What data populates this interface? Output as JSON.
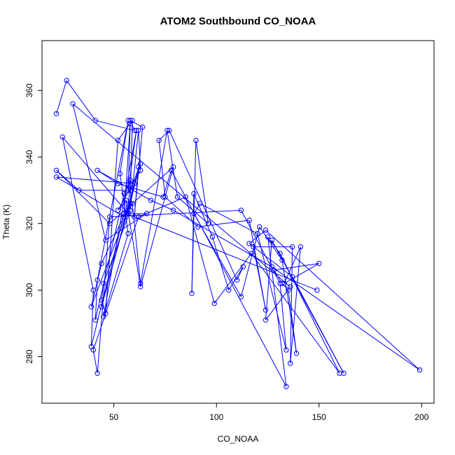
{
  "chart_data": {
    "type": "line",
    "title": "ATOM2 Southbound CO_NOAA",
    "xlabel": "CO_NOAA",
    "ylabel": "Theta (K)",
    "xlim": [
      15,
      206
    ],
    "ylim": [
      266,
      375
    ],
    "xticks": [
      50,
      100,
      150,
      200
    ],
    "yticks": [
      280,
      300,
      320,
      340,
      360
    ],
    "grid": false,
    "legend": "none",
    "series_color": "#0000ff",
    "points": [
      {
        "x": 22,
        "y": 353
      },
      {
        "x": 27,
        "y": 363
      },
      {
        "x": 41,
        "y": 351
      },
      {
        "x": 60,
        "y": 348
      },
      {
        "x": 58,
        "y": 351
      },
      {
        "x": 64,
        "y": 349
      },
      {
        "x": 60,
        "y": 322
      },
      {
        "x": 62,
        "y": 337
      },
      {
        "x": 57,
        "y": 323
      },
      {
        "x": 25,
        "y": 346
      },
      {
        "x": 40,
        "y": 300
      },
      {
        "x": 39,
        "y": 283
      },
      {
        "x": 55,
        "y": 323
      },
      {
        "x": 58,
        "y": 350
      },
      {
        "x": 57,
        "y": 330
      },
      {
        "x": 61,
        "y": 348
      },
      {
        "x": 45,
        "y": 292
      },
      {
        "x": 57,
        "y": 317
      },
      {
        "x": 53,
        "y": 335
      },
      {
        "x": 57,
        "y": 351
      },
      {
        "x": 42,
        "y": 303
      },
      {
        "x": 41,
        "y": 291
      },
      {
        "x": 55,
        "y": 329
      },
      {
        "x": 58,
        "y": 333
      },
      {
        "x": 57,
        "y": 325
      },
      {
        "x": 44,
        "y": 308
      },
      {
        "x": 39,
        "y": 295
      },
      {
        "x": 58,
        "y": 326
      },
      {
        "x": 59,
        "y": 351
      },
      {
        "x": 52,
        "y": 345
      },
      {
        "x": 46,
        "y": 293
      },
      {
        "x": 44,
        "y": 297
      },
      {
        "x": 45,
        "y": 302
      },
      {
        "x": 58,
        "y": 324
      },
      {
        "x": 62,
        "y": 348
      },
      {
        "x": 63,
        "y": 336
      },
      {
        "x": 52,
        "y": 324
      },
      {
        "x": 56,
        "y": 327
      },
      {
        "x": 63,
        "y": 301
      },
      {
        "x": 79,
        "y": 337
      },
      {
        "x": 48,
        "y": 320
      },
      {
        "x": 22,
        "y": 336
      },
      {
        "x": 33,
        "y": 330
      },
      {
        "x": 58,
        "y": 330
      },
      {
        "x": 63,
        "y": 338
      },
      {
        "x": 44,
        "y": 295
      },
      {
        "x": 60,
        "y": 332
      },
      {
        "x": 22,
        "y": 334
      },
      {
        "x": 55,
        "y": 322
      },
      {
        "x": 59,
        "y": 326
      },
      {
        "x": 63,
        "y": 302
      },
      {
        "x": 76,
        "y": 348
      },
      {
        "x": 81,
        "y": 328
      },
      {
        "x": 96,
        "y": 320
      },
      {
        "x": 90,
        "y": 345
      },
      {
        "x": 88,
        "y": 299
      },
      {
        "x": 89,
        "y": 329
      },
      {
        "x": 98,
        "y": 316
      },
      {
        "x": 106,
        "y": 300
      },
      {
        "x": 113,
        "y": 307
      },
      {
        "x": 110,
        "y": 303
      },
      {
        "x": 77,
        "y": 348
      },
      {
        "x": 72,
        "y": 345
      },
      {
        "x": 75,
        "y": 328
      },
      {
        "x": 91,
        "y": 319
      },
      {
        "x": 116,
        "y": 321
      },
      {
        "x": 124,
        "y": 294
      },
      {
        "x": 118,
        "y": 313
      },
      {
        "x": 137,
        "y": 313
      },
      {
        "x": 136,
        "y": 278
      },
      {
        "x": 141,
        "y": 313
      },
      {
        "x": 133,
        "y": 302
      },
      {
        "x": 150,
        "y": 308
      },
      {
        "x": 128,
        "y": 306
      },
      {
        "x": 132,
        "y": 302
      },
      {
        "x": 135,
        "y": 300
      },
      {
        "x": 139,
        "y": 281
      },
      {
        "x": 132,
        "y": 309
      },
      {
        "x": 121,
        "y": 319
      },
      {
        "x": 112,
        "y": 298
      },
      {
        "x": 89,
        "y": 323
      },
      {
        "x": 92,
        "y": 326
      },
      {
        "x": 120,
        "y": 317
      },
      {
        "x": 134,
        "y": 282
      },
      {
        "x": 131,
        "y": 302
      },
      {
        "x": 112,
        "y": 324
      },
      {
        "x": 48,
        "y": 322
      },
      {
        "x": 42,
        "y": 275
      },
      {
        "x": 40,
        "y": 282
      },
      {
        "x": 62,
        "y": 322
      },
      {
        "x": 85,
        "y": 328
      },
      {
        "x": 99,
        "y": 296
      },
      {
        "x": 117,
        "y": 311
      },
      {
        "x": 160,
        "y": 275
      },
      {
        "x": 131,
        "y": 311
      },
      {
        "x": 125,
        "y": 316
      },
      {
        "x": 134,
        "y": 271
      },
      {
        "x": 78,
        "y": 336
      },
      {
        "x": 74,
        "y": 328
      },
      {
        "x": 52,
        "y": 332
      },
      {
        "x": 42,
        "y": 336
      },
      {
        "x": 68,
        "y": 327
      },
      {
        "x": 79,
        "y": 324
      },
      {
        "x": 127,
        "y": 307
      },
      {
        "x": 199,
        "y": 276
      },
      {
        "x": 124,
        "y": 318
      },
      {
        "x": 116,
        "y": 314
      },
      {
        "x": 137,
        "y": 304
      },
      {
        "x": 162,
        "y": 275
      },
      {
        "x": 127,
        "y": 315
      },
      {
        "x": 124,
        "y": 291
      },
      {
        "x": 136,
        "y": 301
      },
      {
        "x": 30,
        "y": 356
      },
      {
        "x": 46,
        "y": 315
      },
      {
        "x": 66,
        "y": 323
      },
      {
        "x": 56,
        "y": 323
      },
      {
        "x": 149,
        "y": 300
      }
    ]
  }
}
